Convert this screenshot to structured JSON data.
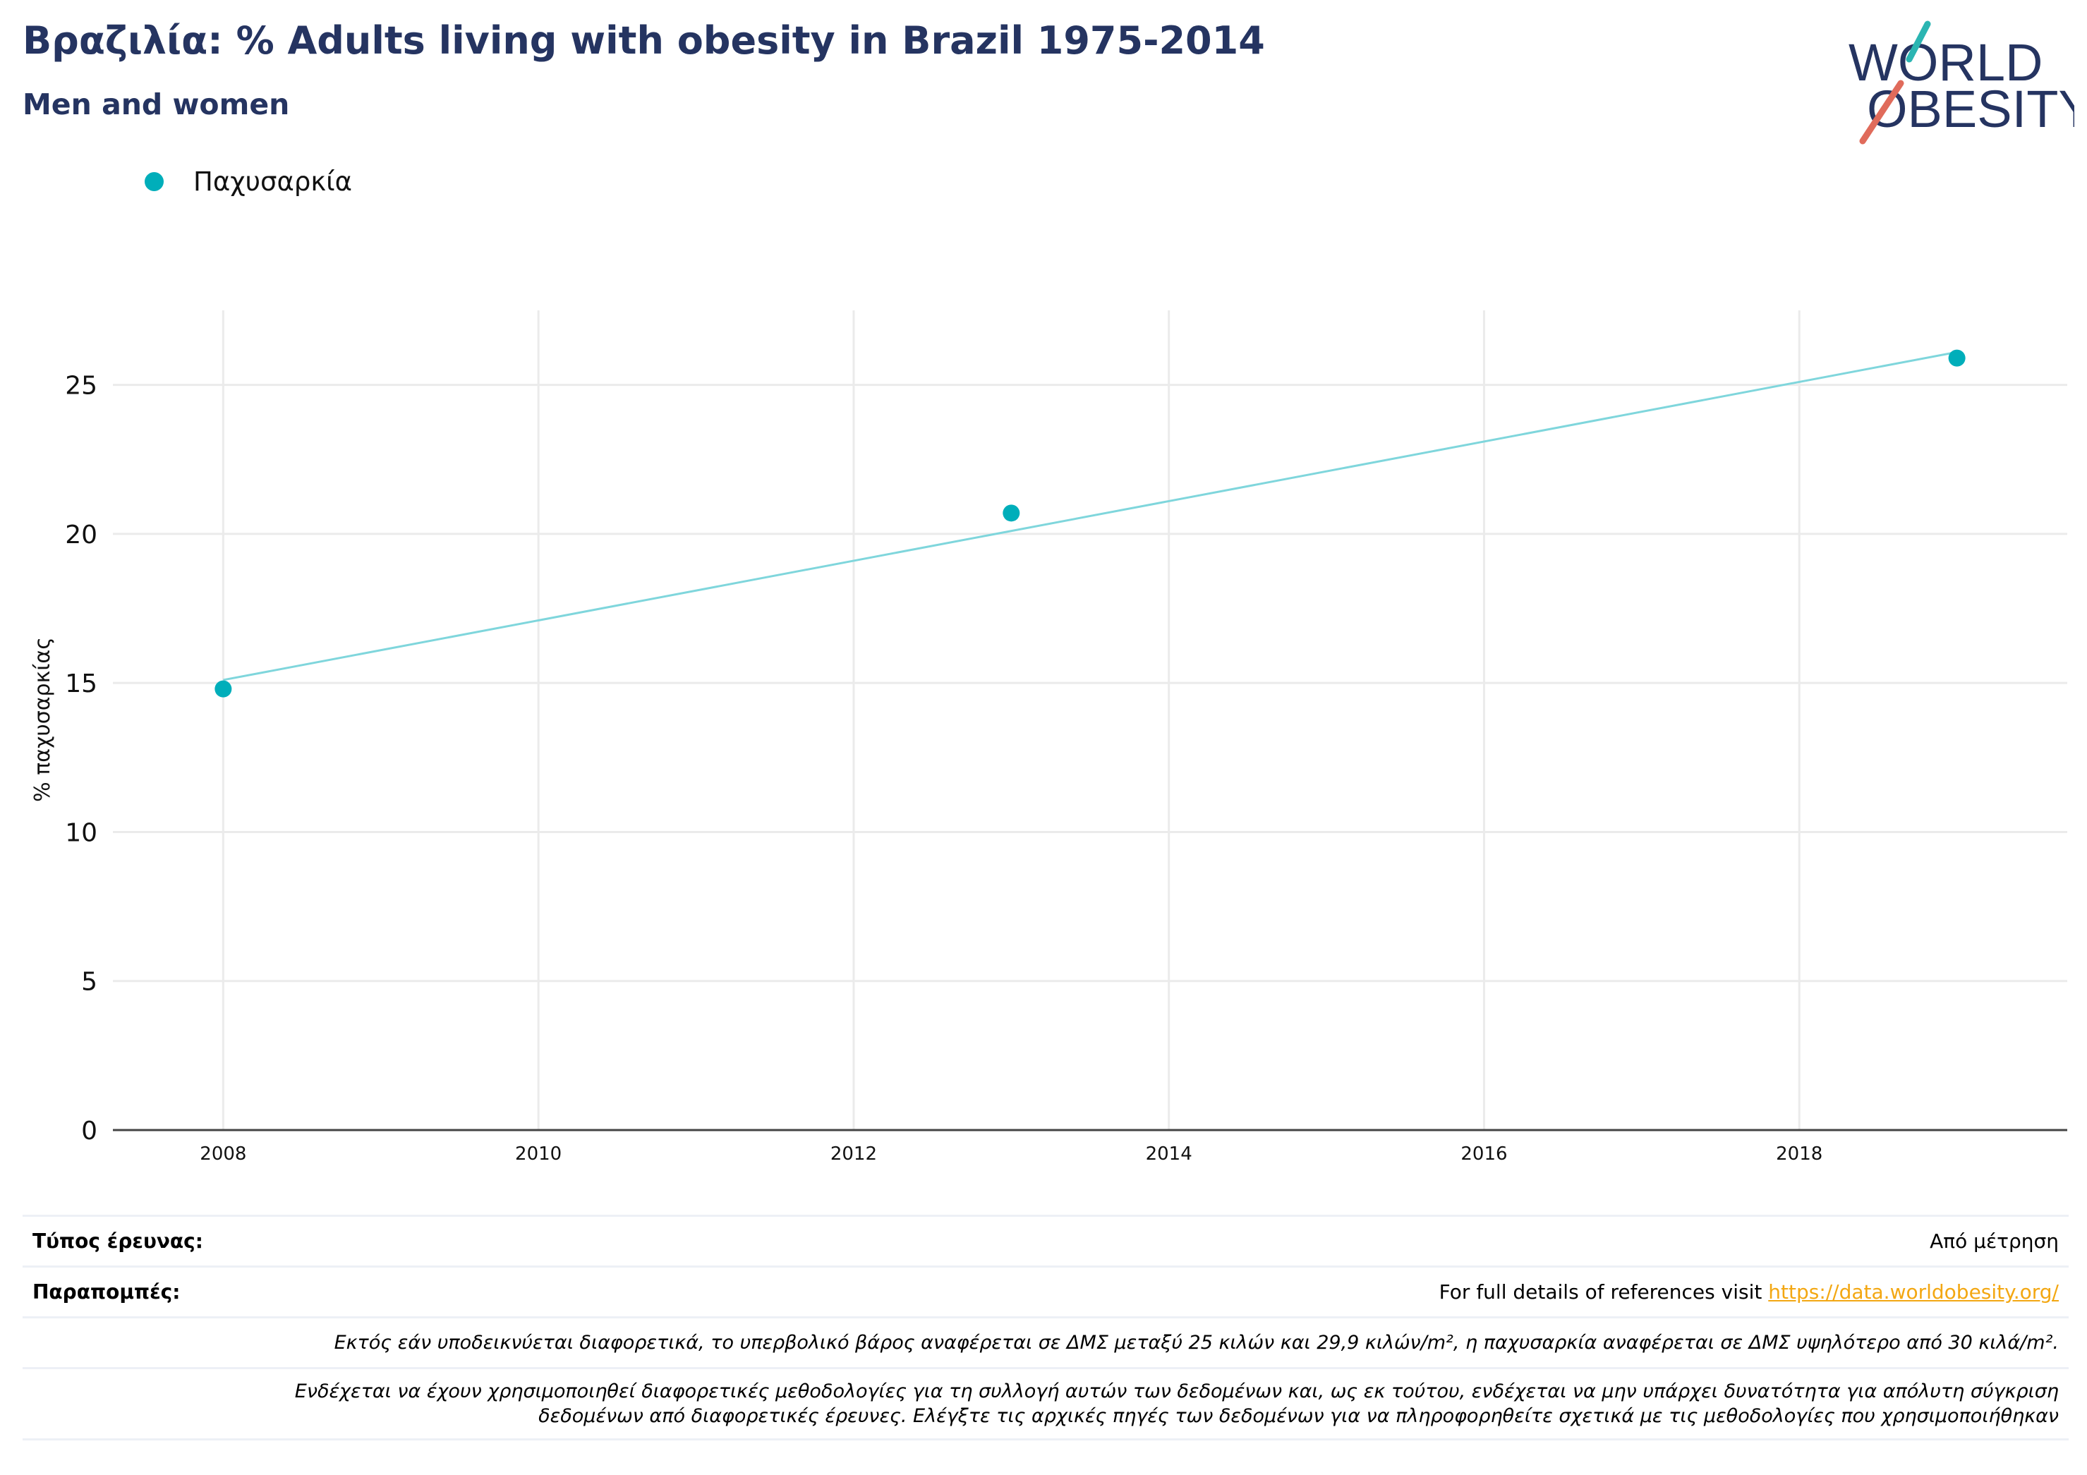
{
  "header": {
    "title": "Βραζιλία: % Adults living with obesity in Brazil 1975-2014",
    "subtitle": "Men and women"
  },
  "logo": {
    "line1": "WORLD",
    "line2": "OBESITY"
  },
  "colors": {
    "title": "#253461",
    "series": "#00aeba",
    "trend": "#7fd6dc",
    "link": "#f3a712",
    "logo_teal": "#2bb5b2",
    "logo_coral": "#e06b5b"
  },
  "chart_data": {
    "type": "scatter",
    "title": "Βραζιλία: % Adults living with obesity in Brazil 1975-2014",
    "subtitle": "Men and women",
    "xlabel": "",
    "ylabel": "% παχυσαρκίας",
    "xlim": [
      2007.3,
      2019.7
    ],
    "ylim": [
      0,
      27.5
    ],
    "xticks": [
      2008,
      2010,
      2012,
      2014,
      2016,
      2018
    ],
    "yticks": [
      0,
      5,
      10,
      15,
      20,
      25
    ],
    "grid": true,
    "legend": "top-left",
    "series": [
      {
        "name": "Παχυσαρκία",
        "color": "#00aeba",
        "points": [
          {
            "x": 2008,
            "y": 14.8
          },
          {
            "x": 2013,
            "y": 20.7
          },
          {
            "x": 2019,
            "y": 25.9
          }
        ]
      }
    ],
    "trendline": {
      "color": "#7fd6dc",
      "from": {
        "x": 2008,
        "y": 15.1
      },
      "to": {
        "x": 2019,
        "y": 26.1
      }
    }
  },
  "footer": {
    "survey_type_label": "Τύπος έρευνας:",
    "survey_type_value": "Από μέτρηση",
    "references_label": "Παραπομπές:",
    "references_text": "For full details of references visit ",
    "references_link": "https://data.worldobesity.org/",
    "note1": "Εκτός εάν υποδεικνύεται διαφορετικά, το υπερβολικό βάρος αναφέρεται σε ΔΜΣ μεταξύ 25 κιλών και 29,9 κιλών/m², η παχυσαρκία αναφέρεται σε ΔΜΣ υψηλότερο από 30 κιλά/m².",
    "note2_line1": "Ενδέχεται να έχουν χρησιμοποιηθεί διαφορετικές μεθοδολογίες για τη συλλογή αυτών των δεδομένων και, ως εκ τούτου, ενδέχεται να μην υπάρχει δυνατότητα για απόλυτη σύγκριση",
    "note2_line2": "δεδομένων από διαφορετικές έρευνες. Ελέγξτε τις αρχικές πηγές των δεδομένων για να πληροφορηθείτε σχετικά με τις μεθοδολογίες που χρησιμοποιήθηκαν"
  }
}
